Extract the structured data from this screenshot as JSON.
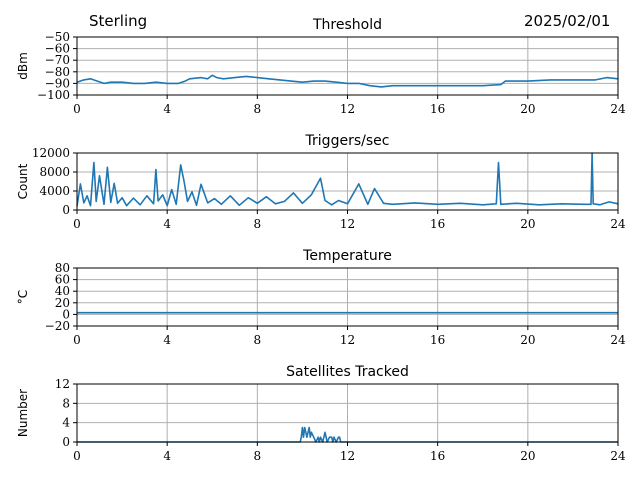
{
  "header": {
    "station": "Sterling",
    "date": "2025/02/01"
  },
  "colors": {
    "series": "#1f77b4",
    "grid": "#b0b0b0"
  },
  "chart_data": [
    {
      "type": "line",
      "title": "Threshold",
      "ylabel": "dBm",
      "xlim": [
        0,
        24
      ],
      "ylim": [
        -100,
        -50
      ],
      "xticks": [
        0,
        4,
        8,
        12,
        16,
        20,
        24
      ],
      "yticks": [
        -100,
        -90,
        -80,
        -70,
        -60,
        -50
      ],
      "yticklabels": [
        "−100",
        "−90",
        "−80",
        "−70",
        "−60",
        "−50"
      ],
      "grid": true,
      "x": [
        0,
        0.3,
        0.6,
        0.9,
        1.2,
        1.5,
        2,
        2.5,
        3,
        3.5,
        4,
        4.5,
        4.8,
        5,
        5.5,
        5.8,
        6,
        6.2,
        6.5,
        7,
        7.5,
        8,
        8.5,
        9,
        9.5,
        10,
        10.5,
        11,
        11.5,
        12,
        12.5,
        13,
        13.5,
        14,
        15,
        16,
        17,
        18,
        18.8,
        19,
        20,
        21,
        22,
        23,
        23.5,
        24
      ],
      "series": [
        {
          "values": [
            -89,
            -87,
            -86,
            -88,
            -90,
            -89,
            -89,
            -90,
            -90,
            -89,
            -90,
            -90,
            -88,
            -86,
            -85,
            -86,
            -83,
            -85,
            -86,
            -85,
            -84,
            -85,
            -86,
            -87,
            -88,
            -89,
            -88,
            -88,
            -89,
            -90,
            -90,
            -92,
            -93,
            -92,
            -92,
            -92,
            -92,
            -92,
            -91,
            -88,
            -88,
            -87,
            -87,
            -87,
            -85,
            -86
          ]
        }
      ]
    },
    {
      "type": "line",
      "title": "Triggers/sec",
      "ylabel": "Count",
      "xlim": [
        0,
        24
      ],
      "ylim": [
        0,
        12000
      ],
      "xticks": [
        0,
        4,
        8,
        12,
        16,
        20,
        24
      ],
      "yticks": [
        0,
        4000,
        8000,
        12000
      ],
      "yticklabels": [
        "0",
        "4000",
        "8000",
        "12000"
      ],
      "grid": true,
      "x": [
        0,
        0.15,
        0.3,
        0.45,
        0.6,
        0.75,
        0.85,
        1.0,
        1.2,
        1.35,
        1.5,
        1.65,
        1.8,
        2.0,
        2.2,
        2.5,
        2.8,
        3.1,
        3.4,
        3.5,
        3.6,
        3.8,
        4.0,
        4.2,
        4.4,
        4.6,
        4.75,
        4.9,
        5.1,
        5.3,
        5.5,
        5.8,
        6.1,
        6.4,
        6.8,
        7.2,
        7.6,
        8.0,
        8.4,
        8.8,
        9.2,
        9.6,
        10.0,
        10.4,
        10.8,
        11.0,
        11.3,
        11.6,
        12.0,
        12.5,
        12.9,
        13.2,
        13.6,
        14.0,
        15.0,
        16.0,
        17.0,
        18.0,
        18.6,
        18.7,
        18.8,
        19.5,
        20.5,
        21.5,
        22.5,
        22.8,
        22.85,
        22.9,
        23.2,
        23.6,
        24
      ],
      "series": [
        {
          "values": [
            800,
            5500,
            1500,
            3000,
            900,
            10000,
            1800,
            7200,
            1200,
            9000,
            1600,
            5600,
            1400,
            2600,
            900,
            2500,
            1100,
            3000,
            1300,
            8500,
            1900,
            3200,
            900,
            4300,
            1200,
            9500,
            6000,
            1800,
            3800,
            1000,
            5400,
            1500,
            2400,
            1200,
            3000,
            1000,
            2600,
            1400,
            2800,
            1300,
            1800,
            3600,
            1400,
            3200,
            6700,
            2000,
            1100,
            2000,
            1300,
            5500,
            1200,
            4500,
            1400,
            1200,
            1500,
            1200,
            1400,
            1100,
            1300,
            10000,
            1200,
            1400,
            1100,
            1300,
            1200,
            1200,
            12000,
            1300,
            1100,
            1700,
            1300
          ]
        }
      ]
    },
    {
      "type": "line",
      "title": "Temperature",
      "ylabel": "°C",
      "xlim": [
        0,
        24
      ],
      "ylim": [
        -20,
        80
      ],
      "xticks": [
        0,
        4,
        8,
        12,
        16,
        20,
        24
      ],
      "yticks": [
        -20,
        0,
        20,
        40,
        60,
        80
      ],
      "yticklabels": [
        "−20",
        "0",
        "20",
        "40",
        "60",
        "80"
      ],
      "grid": true,
      "x": [
        0,
        24
      ],
      "series": [
        {
          "values": [
            3,
            3
          ]
        }
      ]
    },
    {
      "type": "line",
      "title": "Satellites Tracked",
      "ylabel": "Number",
      "xlim": [
        0,
        24
      ],
      "ylim": [
        0,
        12
      ],
      "xticks": [
        0,
        4,
        8,
        12,
        16,
        20,
        24
      ],
      "yticks": [
        0,
        4,
        8,
        12
      ],
      "yticklabels": [
        "0",
        "4",
        "8",
        "12"
      ],
      "grid": true,
      "x": [
        0,
        9.9,
        9.95,
        10.0,
        10.05,
        10.1,
        10.15,
        10.2,
        10.3,
        10.35,
        10.4,
        10.5,
        10.6,
        10.7,
        10.75,
        10.8,
        10.9,
        11.0,
        11.05,
        11.1,
        11.2,
        11.3,
        11.35,
        11.4,
        11.5,
        11.6,
        11.65,
        11.7,
        11.8,
        24
      ],
      "series": [
        {
          "values": [
            0,
            0,
            1,
            3,
            1,
            3,
            2,
            1,
            3,
            1,
            2,
            1,
            0,
            1,
            0,
            1,
            0,
            2,
            1,
            0,
            1,
            1,
            0,
            1,
            0,
            1,
            1,
            0,
            0,
            0
          ]
        }
      ]
    }
  ]
}
